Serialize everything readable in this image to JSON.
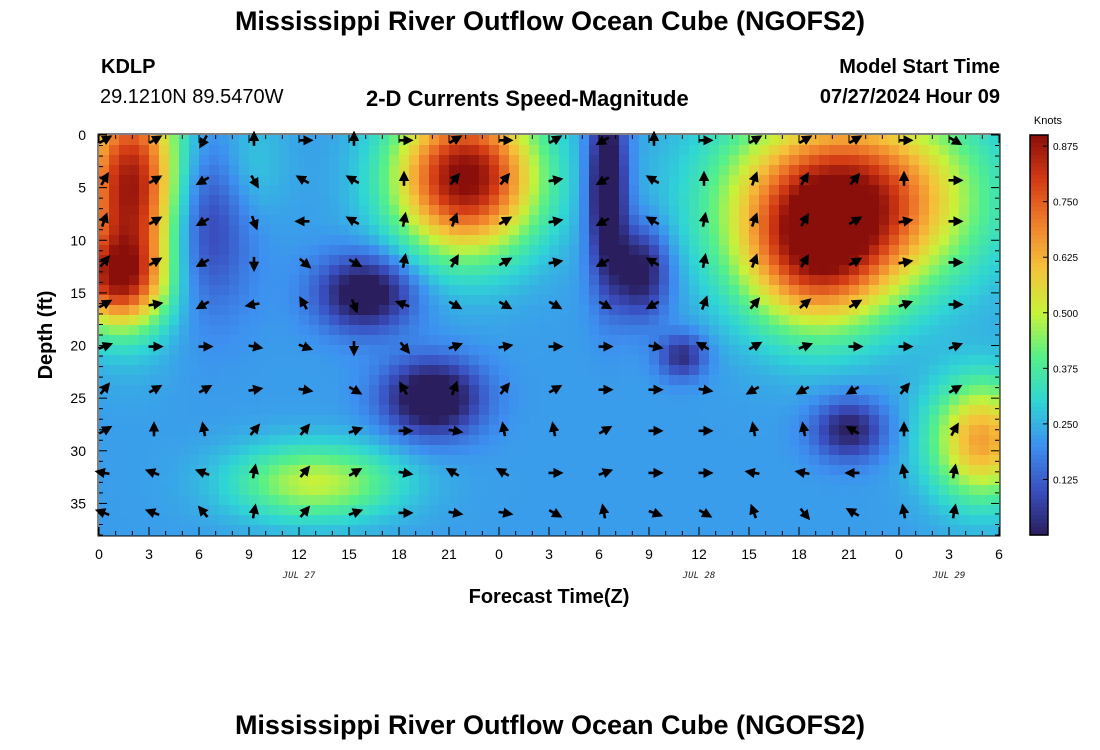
{
  "header": {
    "title": "Mississippi River Outflow Ocean Cube (NGOFS2)",
    "station": "KDLP",
    "coords": "29.1210N  89.5470W",
    "subtitle": "2-D Currents Speed-Magnitude",
    "model_start_label": "Model Start Time",
    "model_start_value": "07/27/2024 Hour 09"
  },
  "footer": {
    "title": "Mississippi River Outflow Ocean Cube (NGOFS2)"
  },
  "chart_data": {
    "type": "heatmap",
    "title": "2-D Currents Speed-Magnitude",
    "xlabel": "Forecast Time(Z)",
    "ylabel": "Depth (ft)",
    "x_tick_labels": [
      "0",
      "3",
      "6",
      "9",
      "12",
      "15",
      "18",
      "21",
      "0",
      "3",
      "6",
      "9",
      "12",
      "15",
      "18",
      "21",
      "0",
      "3",
      "6"
    ],
    "x_range_hours": [
      0,
      54
    ],
    "date_labels": [
      {
        "text": "JUL 27",
        "hour": 12
      },
      {
        "text": "JUL 28",
        "hour": 36
      },
      {
        "text": "JUL 29",
        "hour": 51
      }
    ],
    "y_ticks": [
      0,
      5,
      10,
      15,
      20,
      25,
      30,
      35
    ],
    "y_range": [
      0,
      38
    ],
    "y_inverted": true,
    "colorbar": {
      "title": "Knots",
      "ticks": [
        "0.875",
        "0.750",
        "0.625",
        "0.500",
        "0.375",
        "0.250",
        "0.125"
      ],
      "range": [
        0,
        0.9
      ],
      "colors": [
        "#2a1e5e",
        "#3a4fc0",
        "#3d8ff0",
        "#2fd5d5",
        "#55f08a",
        "#c8f23a",
        "#f5c23a",
        "#f07f2c",
        "#d23a14",
        "#8a0e0a"
      ]
    },
    "speed_features": [
      {
        "t": 2,
        "d": 5,
        "sx": 2.2,
        "sy": 7,
        "v": 0.9
      },
      {
        "t": 1,
        "d": 14,
        "sx": 2,
        "sy": 3,
        "v": 0.65
      },
      {
        "t": 22,
        "d": 4,
        "sx": 3,
        "sy": 5,
        "v": 0.92
      },
      {
        "t": 45,
        "d": 6,
        "sx": 5,
        "sy": 6,
        "v": 0.85
      },
      {
        "t": 43,
        "d": 12,
        "sx": 3,
        "sy": 5,
        "v": 0.6
      },
      {
        "t": 53,
        "d": 29,
        "sx": 2.2,
        "sy": 4,
        "v": 0.65
      },
      {
        "t": 13,
        "d": 33,
        "sx": 3.5,
        "sy": 2.5,
        "v": 0.5
      },
      {
        "t": 9,
        "d": 3,
        "sx": 1.5,
        "sy": 4,
        "v": 0.3
      },
      {
        "t": 16,
        "d": 15,
        "sx": 2,
        "sy": 2.5,
        "v": -0.25
      },
      {
        "t": 20,
        "d": 25,
        "sx": 2,
        "sy": 2.5,
        "v": -0.3
      },
      {
        "t": 30.5,
        "d": 5,
        "sx": 0.8,
        "sy": 6,
        "v": -0.35
      },
      {
        "t": 32.5,
        "d": 13,
        "sx": 1.2,
        "sy": 3,
        "v": -0.2
      },
      {
        "t": 45,
        "d": 28,
        "sx": 1.5,
        "sy": 2,
        "v": -0.15
      },
      {
        "t": 35,
        "d": 21,
        "sx": 1,
        "sy": 1.5,
        "v": -0.1
      },
      {
        "t": 6,
        "d": 8,
        "sx": 2,
        "sy": 6,
        "v": -0.12
      }
    ],
    "vector_columns_hours": [
      0,
      3,
      6,
      9,
      12,
      15,
      18,
      21,
      24,
      27,
      30,
      33,
      36,
      39,
      42,
      45,
      48,
      51
    ],
    "vector_rows_depth_ft": [
      0.5,
      4.3,
      8.2,
      12.1,
      16.1,
      20.1,
      24.2,
      28.1,
      32.1,
      35.9
    ],
    "vector_angles_deg": [
      [
        60,
        60,
        210,
        0,
        90,
        0,
        90,
        60,
        90,
        60,
        240,
        0,
        90,
        60,
        60,
        60,
        90,
        120
      ],
      [
        30,
        60,
        240,
        150,
        300,
        300,
        0,
        40,
        40,
        80,
        240,
        300,
        0,
        20,
        30,
        40,
        0,
        90
      ],
      [
        20,
        60,
        240,
        160,
        270,
        300,
        10,
        20,
        60,
        80,
        240,
        300,
        10,
        20,
        30,
        60,
        80,
        90
      ],
      [
        40,
        60,
        240,
        180,
        130,
        120,
        10,
        30,
        60,
        80,
        240,
        300,
        10,
        20,
        30,
        60,
        80,
        90
      ],
      [
        60,
        80,
        240,
        260,
        330,
        160,
        290,
        120,
        120,
        120,
        120,
        240,
        20,
        40,
        50,
        60,
        70,
        90
      ],
      [
        70,
        90,
        90,
        100,
        110,
        180,
        140,
        70,
        80,
        90,
        90,
        100,
        300,
        60,
        70,
        90,
        90,
        70
      ],
      [
        40,
        60,
        60,
        80,
        100,
        120,
        330,
        20,
        40,
        60,
        90,
        90,
        100,
        240,
        240,
        240,
        40,
        60
      ],
      [
        60,
        0,
        350,
        40,
        40,
        70,
        90,
        100,
        350,
        350,
        60,
        90,
        90,
        350,
        350,
        300,
        0,
        30
      ],
      [
        280,
        290,
        290,
        10,
        40,
        60,
        100,
        300,
        300,
        90,
        70,
        90,
        90,
        280,
        280,
        270,
        350,
        10
      ],
      [
        290,
        290,
        320,
        10,
        40,
        70,
        90,
        100,
        100,
        120,
        350,
        110,
        120,
        340,
        140,
        300,
        350,
        10
      ]
    ]
  }
}
